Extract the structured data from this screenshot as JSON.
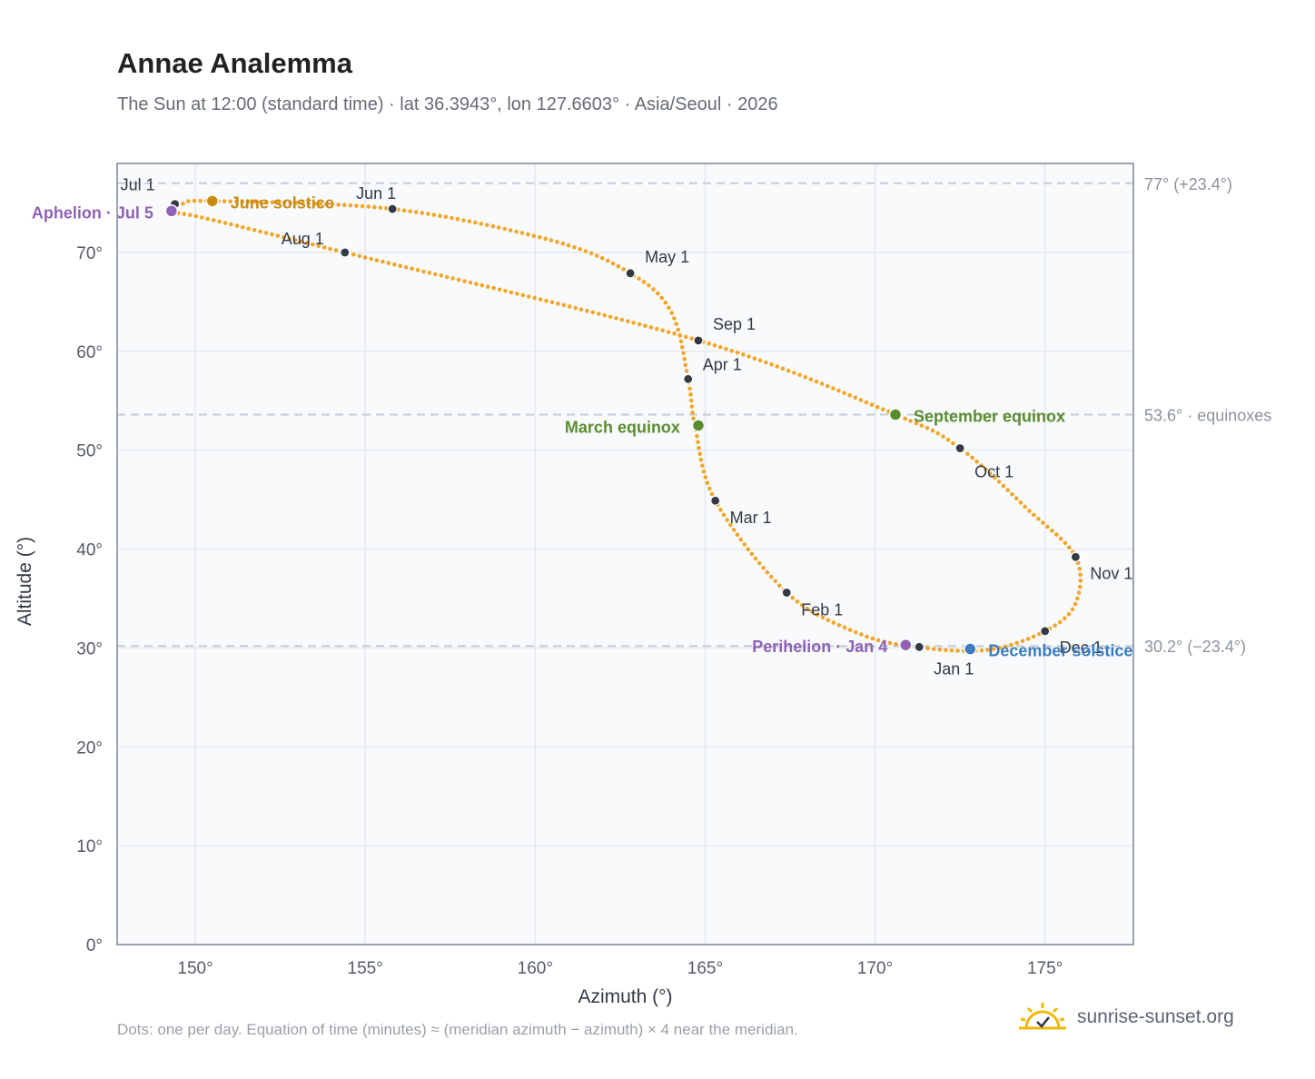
{
  "header": {
    "title": "Annae Analemma",
    "subtitle": "The Sun at 12:00 (standard time) · lat 36.3943°, lon 127.6603° · Asia/Seoul · 2026"
  },
  "footer": {
    "note": "Dots: one per day. Equation of time (minutes) ≈ (meridian azimuth − azimuth) × 4 near the meridian.",
    "brand": "sunrise-sunset.org",
    "brand_icon": "sun-check-icon"
  },
  "chart_data": {
    "type": "scatter",
    "xlabel": "Azimuth (°)",
    "ylabel": "Altitude (°)",
    "xlim": [
      147.7,
      177.6
    ],
    "ylim": [
      0,
      79
    ],
    "xticks": [
      150,
      155,
      160,
      165,
      170,
      175
    ],
    "yticks": [
      0,
      10,
      20,
      30,
      40,
      50,
      60,
      70
    ],
    "x_tick_labels": [
      "150°",
      "155°",
      "160°",
      "165°",
      "170°",
      "175°"
    ],
    "y_tick_labels": [
      "0°",
      "10°",
      "20°",
      "30°",
      "40°",
      "50°",
      "60°",
      "70°"
    ],
    "grid": true,
    "reference_lines": [
      {
        "y": 77.0,
        "label": "77° (+23.4°)"
      },
      {
        "y": 53.6,
        "label": "53.6° · equinoxes"
      },
      {
        "y": 30.2,
        "label": "30.2° (−23.4°)"
      }
    ],
    "path_keypoints": [
      {
        "x": 171.2,
        "y": 30.1
      },
      {
        "x": 173.3,
        "y": 29.8
      },
      {
        "x": 175.0,
        "y": 31.7
      },
      {
        "x": 175.9,
        "y": 34.5
      },
      {
        "x": 175.9,
        "y": 39.2
      },
      {
        "x": 174.5,
        "y": 44.0
      },
      {
        "x": 172.5,
        "y": 50.2
      },
      {
        "x": 170.6,
        "y": 53.6
      },
      {
        "x": 164.8,
        "y": 61.1
      },
      {
        "x": 154.4,
        "y": 70.0
      },
      {
        "x": 150.5,
        "y": 73.3
      },
      {
        "x": 149.3,
        "y": 74.2
      },
      {
        "x": 149.6,
        "y": 74.9
      },
      {
        "x": 150.5,
        "y": 75.2
      },
      {
        "x": 155.8,
        "y": 74.4
      },
      {
        "x": 160.5,
        "y": 71.2
      },
      {
        "x": 162.8,
        "y": 67.9
      },
      {
        "x": 164.0,
        "y": 64.0
      },
      {
        "x": 164.5,
        "y": 57.2
      },
      {
        "x": 164.7,
        "y": 52.5
      },
      {
        "x": 165.3,
        "y": 44.9
      },
      {
        "x": 167.4,
        "y": 35.6
      },
      {
        "x": 169.5,
        "y": 31.5
      },
      {
        "x": 171.2,
        "y": 30.1
      }
    ],
    "month_markers": [
      {
        "label": "Jan 1",
        "x": 171.3,
        "y": 30.1
      },
      {
        "label": "Feb 1",
        "x": 167.4,
        "y": 35.6
      },
      {
        "label": "Mar 1",
        "x": 165.3,
        "y": 44.9
      },
      {
        "label": "Apr 1",
        "x": 164.5,
        "y": 57.2
      },
      {
        "label": "May 1",
        "x": 162.8,
        "y": 67.9
      },
      {
        "label": "Jun 1",
        "x": 155.8,
        "y": 74.4
      },
      {
        "label": "Jul 1",
        "x": 149.4,
        "y": 74.9
      },
      {
        "label": "Aug 1",
        "x": 154.4,
        "y": 70.0
      },
      {
        "label": "Sep 1",
        "x": 164.8,
        "y": 61.1
      },
      {
        "label": "Oct 1",
        "x": 172.5,
        "y": 50.2
      },
      {
        "label": "Nov 1",
        "x": 175.9,
        "y": 39.2
      },
      {
        "label": "Dec 1",
        "x": 175.0,
        "y": 31.7
      }
    ],
    "events": [
      {
        "label": "June solstice",
        "x": 150.5,
        "y": 75.2,
        "color": "#c98a12"
      },
      {
        "label": "Aphelion · Jul 5",
        "x": 149.3,
        "y": 74.2,
        "color": "#8e62b5"
      },
      {
        "label": "March equinox",
        "x": 164.8,
        "y": 52.5,
        "color": "#5a8c2f"
      },
      {
        "label": "September equinox",
        "x": 170.6,
        "y": 53.6,
        "color": "#5a8c2f"
      },
      {
        "label": "Perihelion · Jan 4",
        "x": 170.9,
        "y": 30.3,
        "color": "#8e62b5"
      },
      {
        "label": "December solstice",
        "x": 172.8,
        "y": 29.9,
        "color": "#3c7cc0"
      }
    ],
    "colors": {
      "path": "#f2a62a",
      "month_dot": "#333a44",
      "plot_bg": "#f8fafc",
      "grid": "#e6e9ee",
      "frame": "#9aa3b0",
      "ref_line": "#c5ccd6"
    }
  }
}
